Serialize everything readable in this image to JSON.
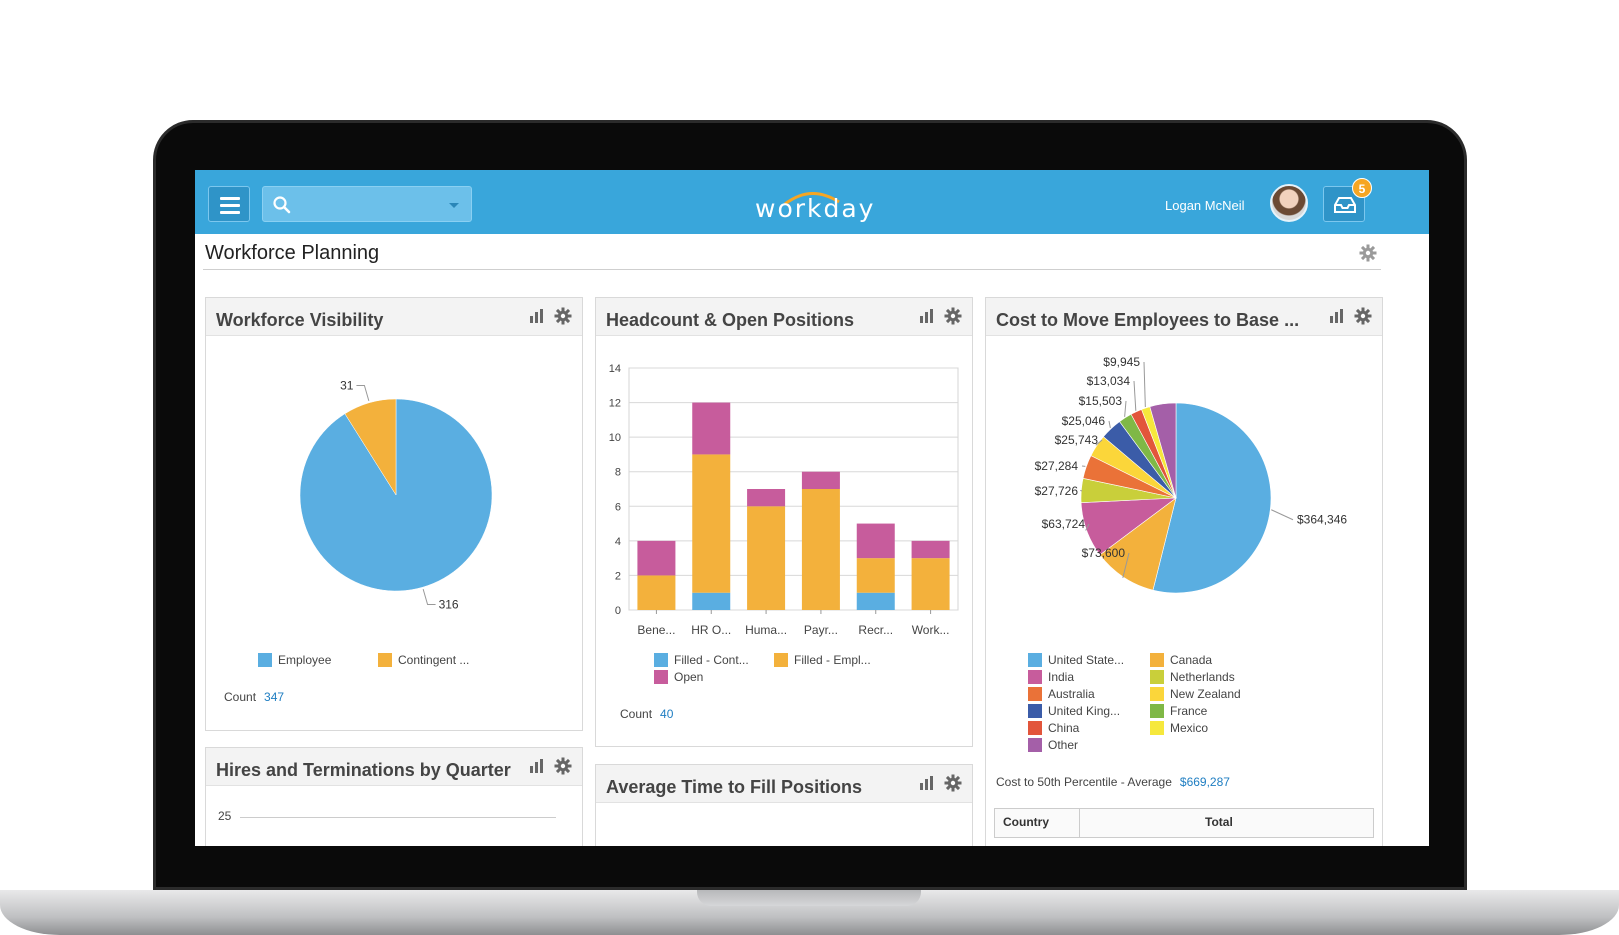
{
  "app": {
    "logo_text": "workday",
    "user_name": "Logan McNeil",
    "inbox_count": "5"
  },
  "search": {
    "value": "",
    "placeholder": ""
  },
  "page": {
    "title": "Workforce Planning"
  },
  "panels": {
    "workforce_visibility": {
      "title": "Workforce Visibility",
      "count_label": "Count",
      "count_value": "347",
      "legend": [
        "Employee",
        "Contingent ..."
      ]
    },
    "headcount": {
      "title": "Headcount & Open Positions",
      "count_label": "Count",
      "count_value": "40",
      "legend": [
        "Filled - Cont...",
        "Filled - Empl...",
        "Open"
      ]
    },
    "cost_to_move": {
      "title": "Cost to Move Employees to Base ...",
      "summary_label": "Cost to 50th Percentile - Average",
      "summary_value": "$669,287",
      "legend": [
        "United State...",
        "Canada",
        "India",
        "Netherlands",
        "Australia",
        "New Zealand",
        "United King...",
        "France",
        "China",
        "Mexico",
        "Other"
      ],
      "table_headers": [
        "Country",
        "Total"
      ]
    },
    "hires_terms": {
      "title": "Hires and Terminations by Quarter",
      "first_tick": "25"
    },
    "avg_time": {
      "title": "Average Time to Fill Positions"
    }
  },
  "colors": {
    "topbar": "#39a6db",
    "blue": "#5aaee1",
    "orange": "#f3b13c",
    "magenta": "#c75c9c",
    "link": "#1f7ec2"
  },
  "chart_data": [
    {
      "type": "pie",
      "title": "Workforce Visibility",
      "slices": [
        {
          "label": "Employee",
          "value": 316,
          "color": "#5aaee1"
        },
        {
          "label": "Contingent ...",
          "value": 31,
          "color": "#f3b13c"
        }
      ]
    },
    {
      "type": "bar",
      "stacked": true,
      "title": "Headcount & Open Positions",
      "categories": [
        "Bene...",
        "HR O...",
        "Huma...",
        "Payr...",
        "Recr...",
        "Work..."
      ],
      "ylim": [
        0,
        14
      ],
      "yticks": [
        0,
        2,
        4,
        6,
        8,
        10,
        12,
        14
      ],
      "grid": true,
      "series": [
        {
          "name": "Filled - Cont...",
          "color": "#5aaee1",
          "values": [
            0,
            1,
            0,
            0,
            1,
            0
          ]
        },
        {
          "name": "Filled - Empl...",
          "color": "#f3b13c",
          "values": [
            2,
            8,
            6,
            7,
            2,
            3
          ]
        },
        {
          "name": "Open",
          "color": "#c75c9c",
          "values": [
            2,
            3,
            1,
            1,
            2,
            1
          ]
        }
      ]
    },
    {
      "type": "pie",
      "title": "Cost to Move Employees to Base ...",
      "slices": [
        {
          "label": "United State...",
          "value": 364346,
          "text": "$364,346",
          "color": "#5aaee1"
        },
        {
          "label": "Canada",
          "value": 73600,
          "text": "$73,600",
          "color": "#f3b13c"
        },
        {
          "label": "India",
          "value": 63724,
          "text": "$63,724",
          "color": "#c75c9c"
        },
        {
          "label": "Netherlands",
          "value": 27726,
          "text": "$27,726",
          "color": "#c9cf3a"
        },
        {
          "label": "Australia",
          "value": 27284,
          "text": "$27,284",
          "color": "#ea7238"
        },
        {
          "label": "New Zealand",
          "value": 25743,
          "text": "$25,743",
          "color": "#fbd63a"
        },
        {
          "label": "United King...",
          "value": 25046,
          "text": "$25,046",
          "color": "#3b5ca8"
        },
        {
          "label": "France",
          "value": 15503,
          "text": "$15,503",
          "color": "#7fb846"
        },
        {
          "label": "China",
          "value": 13034,
          "text": "$13,034",
          "color": "#e2553b"
        },
        {
          "label": "Mexico",
          "value": 9945,
          "text": "$9,945",
          "color": "#f6e83c"
        },
        {
          "label": "Other",
          "value": 30000,
          "text": "",
          "color": "#a45fa8"
        }
      ]
    }
  ]
}
